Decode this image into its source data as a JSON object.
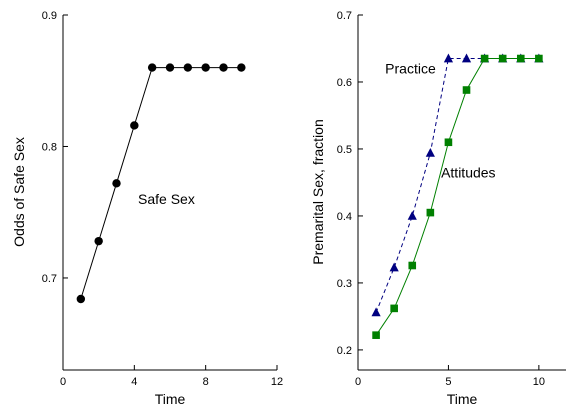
{
  "chart_data": [
    {
      "type": "line",
      "title": "",
      "xlabel": "Time",
      "ylabel": "Odds of Safe Sex",
      "xlim": [
        0,
        12
      ],
      "ylim": [
        0.63,
        0.9
      ],
      "xticks": [
        0,
        4,
        8,
        12
      ],
      "yticks": [
        0.7,
        0.8,
        0.9
      ],
      "grid": false,
      "series": [
        {
          "name": "Safe Sex",
          "color": "#000000",
          "marker": "circle",
          "line_style": "solid",
          "x": [
            1,
            2,
            3,
            4,
            5,
            6,
            7,
            8,
            9,
            10
          ],
          "y": [
            0.684,
            0.728,
            0.772,
            0.816,
            0.86,
            0.86,
            0.86,
            0.86,
            0.86,
            0.86
          ]
        }
      ],
      "annotations": [
        {
          "text": "Safe Sex",
          "x": 5.8,
          "y": 0.76
        }
      ]
    },
    {
      "type": "line",
      "title": "",
      "xlabel": "Time",
      "ylabel": "Premarital Sex, fraction",
      "xlim": [
        0,
        11.5
      ],
      "ylim": [
        0.17,
        0.7
      ],
      "xticks": [
        0,
        5,
        10
      ],
      "yticks": [
        0.2,
        0.3,
        0.4,
        0.5,
        0.6,
        0.7
      ],
      "grid": false,
      "series": [
        {
          "name": "Practice",
          "color": "#000080",
          "marker": "triangle",
          "line_style": "dashed",
          "x": [
            1,
            2,
            3,
            4,
            5,
            6,
            7,
            8,
            9,
            10
          ],
          "y": [
            0.256,
            0.323,
            0.4,
            0.494,
            0.635,
            0.635,
            0.635,
            0.635,
            0.635,
            0.635
          ]
        },
        {
          "name": "Attitudes",
          "color": "#008000",
          "marker": "square",
          "line_style": "solid",
          "x": [
            1,
            2,
            3,
            4,
            5,
            6,
            7,
            8,
            9,
            10
          ],
          "y": [
            0.222,
            0.262,
            0.326,
            0.405,
            0.51,
            0.588,
            0.635,
            0.635,
            0.635,
            0.635
          ]
        }
      ],
      "annotations": [
        {
          "text": "Practice",
          "x": 2.9,
          "y": 0.62
        },
        {
          "text": "Attitudes",
          "x": 6.1,
          "y": 0.465
        }
      ]
    }
  ]
}
